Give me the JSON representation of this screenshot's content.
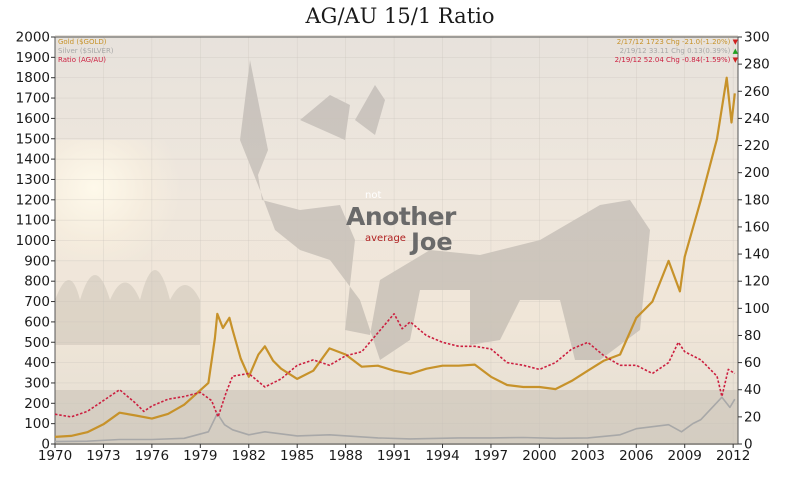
{
  "chart_data": {
    "type": "line",
    "title": "AG/AU 15/1 Ratio",
    "x_ticks": [
      "1970",
      "1973",
      "1976",
      "1979",
      "1982",
      "1985",
      "1988",
      "1991",
      "1994",
      "1997",
      "2000",
      "2003",
      "2006",
      "2009",
      "2012"
    ],
    "xlim": [
      1970,
      2012.3
    ],
    "y_left": {
      "ticks": [
        0,
        100,
        200,
        300,
        400,
        500,
        600,
        700,
        800,
        900,
        1000,
        1100,
        1200,
        1300,
        1400,
        1500,
        1600,
        1700,
        1800,
        1900,
        2000
      ],
      "ylim": [
        0,
        2000
      ]
    },
    "y_right": {
      "ticks": [
        0,
        20,
        40,
        60,
        80,
        100,
        120,
        140,
        160,
        180,
        200,
        220,
        240,
        260,
        280,
        300
      ],
      "ylim": [
        0,
        300
      ]
    },
    "legend": [
      {
        "label": "Gold",
        "symbol": "($GOLD)",
        "value_text": "2/17/12 1723 Chg -21.0(-1.20%)",
        "color": "#c7922a",
        "marker": "▼",
        "marker_color": "#d02020"
      },
      {
        "label": "Silver",
        "symbol": "($SILVER)",
        "value_text": "2/19/12 33.11 Chg 0.13(0.39%)",
        "color": "#a8a8a8",
        "marker": "▲",
        "marker_color": "#20a020"
      },
      {
        "label": "Ratio",
        "symbol": "(AG/AU)",
        "value_text": "2/19/12 52.04 Chg -0.84(-1.59%)",
        "color": "#cc2040",
        "marker": "▼",
        "marker_color": "#d02020"
      }
    ],
    "series": [
      {
        "name": "Gold",
        "axis": "left",
        "color": "#c7922a",
        "points": [
          [
            1970,
            35
          ],
          [
            1971,
            40
          ],
          [
            1972,
            58
          ],
          [
            1973,
            97
          ],
          [
            1974,
            154
          ],
          [
            1975,
            140
          ],
          [
            1976,
            125
          ],
          [
            1977,
            148
          ],
          [
            1978,
            193
          ],
          [
            1979.5,
            300
          ],
          [
            1979.9,
            520
          ],
          [
            1980.05,
            640
          ],
          [
            1980.4,
            570
          ],
          [
            1980.8,
            620
          ],
          [
            1981,
            560
          ],
          [
            1981.5,
            420
          ],
          [
            1982,
            330
          ],
          [
            1982.6,
            440
          ],
          [
            1983,
            480
          ],
          [
            1983.5,
            410
          ],
          [
            1984,
            370
          ],
          [
            1985,
            320
          ],
          [
            1986,
            360
          ],
          [
            1987,
            470
          ],
          [
            1988,
            440
          ],
          [
            1989,
            380
          ],
          [
            1990,
            385
          ],
          [
            1991,
            360
          ],
          [
            1992,
            345
          ],
          [
            1993,
            370
          ],
          [
            1994,
            385
          ],
          [
            1995,
            385
          ],
          [
            1996,
            390
          ],
          [
            1997,
            330
          ],
          [
            1998,
            290
          ],
          [
            1999,
            280
          ],
          [
            2000,
            280
          ],
          [
            2001,
            270
          ],
          [
            2002,
            310
          ],
          [
            2003,
            360
          ],
          [
            2004,
            410
          ],
          [
            2005,
            440
          ],
          [
            2006,
            620
          ],
          [
            2007,
            700
          ],
          [
            2008,
            900
          ],
          [
            2008.7,
            750
          ],
          [
            2009,
            920
          ],
          [
            2010,
            1200
          ],
          [
            2011,
            1500
          ],
          [
            2011.6,
            1800
          ],
          [
            2011.9,
            1580
          ],
          [
            2012.1,
            1723
          ]
        ]
      },
      {
        "name": "Silver",
        "axis": "left",
        "color": "#a8a8a8",
        "points": [
          [
            1970,
            12
          ],
          [
            1972,
            14
          ],
          [
            1974,
            22
          ],
          [
            1976,
            22
          ],
          [
            1978,
            28
          ],
          [
            1979.5,
            60
          ],
          [
            1980.05,
            150
          ],
          [
            1980.5,
            95
          ],
          [
            1981,
            70
          ],
          [
            1982,
            45
          ],
          [
            1983,
            60
          ],
          [
            1985,
            40
          ],
          [
            1987,
            45
          ],
          [
            1990,
            30
          ],
          [
            1992,
            25
          ],
          [
            1995,
            30
          ],
          [
            1997,
            30
          ],
          [
            1999,
            32
          ],
          [
            2001,
            28
          ],
          [
            2003,
            30
          ],
          [
            2005,
            45
          ],
          [
            2006,
            75
          ],
          [
            2008,
            95
          ],
          [
            2008.8,
            60
          ],
          [
            2009.5,
            100
          ],
          [
            2010,
            120
          ],
          [
            2011.3,
            230
          ],
          [
            2011.8,
            180
          ],
          [
            2012.1,
            220
          ]
        ]
      },
      {
        "name": "Ratio",
        "axis": "right",
        "color": "#cc2040",
        "points": [
          [
            1970,
            22
          ],
          [
            1971,
            20
          ],
          [
            1972,
            24
          ],
          [
            1973,
            32
          ],
          [
            1974,
            40
          ],
          [
            1975,
            30
          ],
          [
            1975.5,
            24
          ],
          [
            1976,
            28
          ],
          [
            1977,
            33
          ],
          [
            1978,
            35
          ],
          [
            1979,
            38
          ],
          [
            1979.7,
            32
          ],
          [
            1980.1,
            20
          ],
          [
            1980.6,
            38
          ],
          [
            1981,
            50
          ],
          [
            1982,
            52
          ],
          [
            1983,
            42
          ],
          [
            1984,
            48
          ],
          [
            1985,
            58
          ],
          [
            1986,
            62
          ],
          [
            1987,
            58
          ],
          [
            1988,
            65
          ],
          [
            1989,
            68
          ],
          [
            1990,
            82
          ],
          [
            1991,
            96
          ],
          [
            1991.5,
            85
          ],
          [
            1992,
            90
          ],
          [
            1993,
            80
          ],
          [
            1994,
            75
          ],
          [
            1995,
            72
          ],
          [
            1996,
            72
          ],
          [
            1997,
            70
          ],
          [
            1998,
            60
          ],
          [
            1999,
            58
          ],
          [
            2000,
            55
          ],
          [
            2001,
            60
          ],
          [
            2002,
            70
          ],
          [
            2003,
            75
          ],
          [
            2004,
            65
          ],
          [
            2005,
            58
          ],
          [
            2006,
            58
          ],
          [
            2007,
            52
          ],
          [
            2008,
            60
          ],
          [
            2008.6,
            75
          ],
          [
            2009,
            68
          ],
          [
            2010,
            62
          ],
          [
            2011,
            50
          ],
          [
            2011.3,
            35
          ],
          [
            2011.7,
            55
          ],
          [
            2012.1,
            52
          ]
        ]
      }
    ]
  },
  "logo": {
    "not": "not",
    "another": "Another",
    "average": "average",
    "joe": "Joe"
  }
}
